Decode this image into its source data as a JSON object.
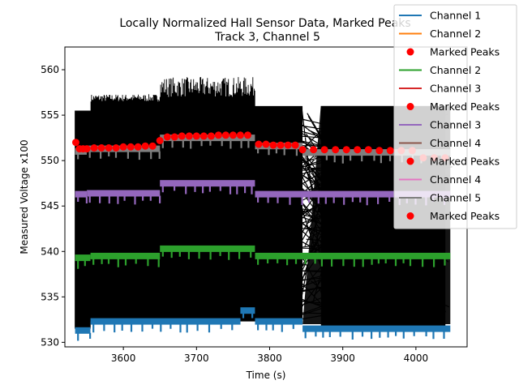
{
  "chart_data": {
    "type": "line",
    "title": [
      "Locally Normalized Hall Sensor Data, Marked Peaks",
      "Track 3, Channel 5"
    ],
    "xlabel": "Time (s)",
    "ylabel": "Measured Voltage x100",
    "xlim": [
      3520,
      4070
    ],
    "ylim": [
      529.5,
      562.5
    ],
    "xticks": [
      3600,
      3700,
      3800,
      3900,
      4000
    ],
    "yticks": [
      530,
      535,
      540,
      545,
      550,
      555,
      560
    ],
    "grid": false,
    "legend_placement": "top-right",
    "series": [
      {
        "name": "Channel 1",
        "kind": "line",
        "color": "#1f77b4",
        "segments": [
          {
            "x0": 3534,
            "x1": 3555,
            "y": 531.3
          },
          {
            "x0": 3555,
            "x1": 3760,
            "y": 532.3
          },
          {
            "x0": 3760,
            "x1": 3780,
            "y": 533.5
          },
          {
            "x0": 3780,
            "x1": 3845,
            "y": 532.3
          },
          {
            "x0": 3845,
            "x1": 4047,
            "y": 531.5
          }
        ]
      },
      {
        "name": "Channel 2",
        "kind": "line",
        "color": "#ff7f0e",
        "segments": []
      },
      {
        "name": "Marked Peaks",
        "kind": "marker",
        "color": "#ff0000",
        "points": []
      },
      {
        "name": "Channel 2",
        "kind": "line",
        "color": "#2ca02c",
        "segments": [
          {
            "x0": 3534,
            "x1": 3555,
            "y": 539.3
          },
          {
            "x0": 3555,
            "x1": 3650,
            "y": 539.5
          },
          {
            "x0": 3650,
            "x1": 3780,
            "y": 540.3
          },
          {
            "x0": 3780,
            "x1": 4047,
            "y": 539.5
          }
        ]
      },
      {
        "name": "Channel 3",
        "kind": "line",
        "color": "#d62728",
        "segments": []
      },
      {
        "name": "Marked Peaks",
        "kind": "marker",
        "color": "#ff0000",
        "points": []
      },
      {
        "name": "Channel 3",
        "kind": "line",
        "color": "#9467bd",
        "segments": [
          {
            "x0": 3534,
            "x1": 3550,
            "y": 546.3
          },
          {
            "x0": 3550,
            "x1": 3650,
            "y": 546.4
          },
          {
            "x0": 3650,
            "x1": 3780,
            "y": 547.5
          },
          {
            "x0": 3780,
            "x1": 4047,
            "y": 546.3
          }
        ]
      },
      {
        "name": "Channel 4",
        "kind": "line",
        "color": "#8c564b",
        "segments": []
      },
      {
        "name": "Marked Peaks",
        "kind": "marker",
        "color": "#ff0000",
        "points": []
      },
      {
        "name": "Channel 4",
        "kind": "line",
        "color": "#e377c2",
        "segments": []
      },
      {
        "name": "Channel 5",
        "kind": "line",
        "color": "#7f7f7f",
        "segments": [
          {
            "x0": 3534,
            "x1": 3550,
            "y": 551.0
          },
          {
            "x0": 3550,
            "x1": 3650,
            "y": 551.3
          },
          {
            "x0": 3650,
            "x1": 3780,
            "y": 552.5
          },
          {
            "x0": 3780,
            "x1": 3845,
            "y": 551.6
          },
          {
            "x0": 3845,
            "x1": 4047,
            "y": 550.9
          }
        ]
      },
      {
        "name": "Marked Peaks",
        "kind": "marker",
        "color": "#ff0000",
        "points": [
          [
            3535,
            552.0
          ],
          [
            3540,
            551.3
          ],
          [
            3545,
            551.3
          ],
          [
            3550,
            551.3
          ],
          [
            3560,
            551.4
          ],
          [
            3570,
            551.4
          ],
          [
            3580,
            551.4
          ],
          [
            3590,
            551.4
          ],
          [
            3600,
            551.5
          ],
          [
            3610,
            551.5
          ],
          [
            3620,
            551.5
          ],
          [
            3630,
            551.6
          ],
          [
            3640,
            551.6
          ],
          [
            3650,
            552.2
          ],
          [
            3660,
            552.6
          ],
          [
            3670,
            552.6
          ],
          [
            3680,
            552.7
          ],
          [
            3690,
            552.7
          ],
          [
            3700,
            552.7
          ],
          [
            3710,
            552.7
          ],
          [
            3720,
            552.7
          ],
          [
            3730,
            552.8
          ],
          [
            3740,
            552.8
          ],
          [
            3750,
            552.8
          ],
          [
            3760,
            552.8
          ],
          [
            3770,
            552.8
          ],
          [
            3785,
            551.8
          ],
          [
            3795,
            551.8
          ],
          [
            3805,
            551.7
          ],
          [
            3815,
            551.7
          ],
          [
            3825,
            551.7
          ],
          [
            3835,
            551.7
          ],
          [
            3845,
            551.2
          ],
          [
            3860,
            551.2
          ],
          [
            3875,
            551.2
          ],
          [
            3890,
            551.2
          ],
          [
            3905,
            551.2
          ],
          [
            3920,
            551.2
          ],
          [
            3935,
            551.2
          ],
          [
            3950,
            551.1
          ],
          [
            3965,
            551.1
          ],
          [
            3980,
            551.1
          ],
          [
            3995,
            551.1
          ],
          [
            4010,
            550.3
          ],
          [
            4025,
            550.3
          ],
          [
            4040,
            550.3
          ]
        ]
      }
    ]
  }
}
